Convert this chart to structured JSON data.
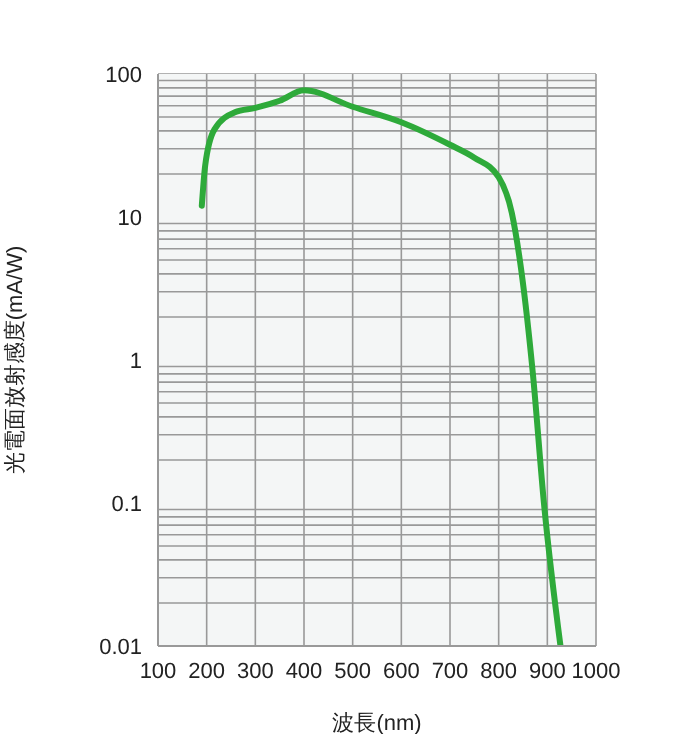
{
  "chart_data": {
    "type": "line",
    "xlabel": "波長(nm)",
    "ylabel": "光電面放射感度(mA/W)",
    "log": "y",
    "grid": true,
    "xlim": [
      100,
      1000
    ],
    "xticks": [
      100,
      200,
      300,
      400,
      500,
      600,
      700,
      800,
      900,
      1000
    ],
    "ylim": [
      0.01,
      100
    ],
    "yticks": [
      0.01,
      0.1,
      1,
      10,
      100
    ],
    "series": [
      {
        "color": "#2eaa3a",
        "x": [
          190,
          197,
          216,
          258,
          300,
          350,
          400,
          500,
          600,
          700,
          750,
          800,
          827,
          847,
          870,
          893,
          927
        ],
        "values": [
          12,
          23,
          41,
          54,
          58,
          65,
          77,
          59,
          46,
          32,
          26,
          19,
          10.7,
          4.1,
          0.82,
          0.1,
          0.01
        ]
      }
    ]
  }
}
